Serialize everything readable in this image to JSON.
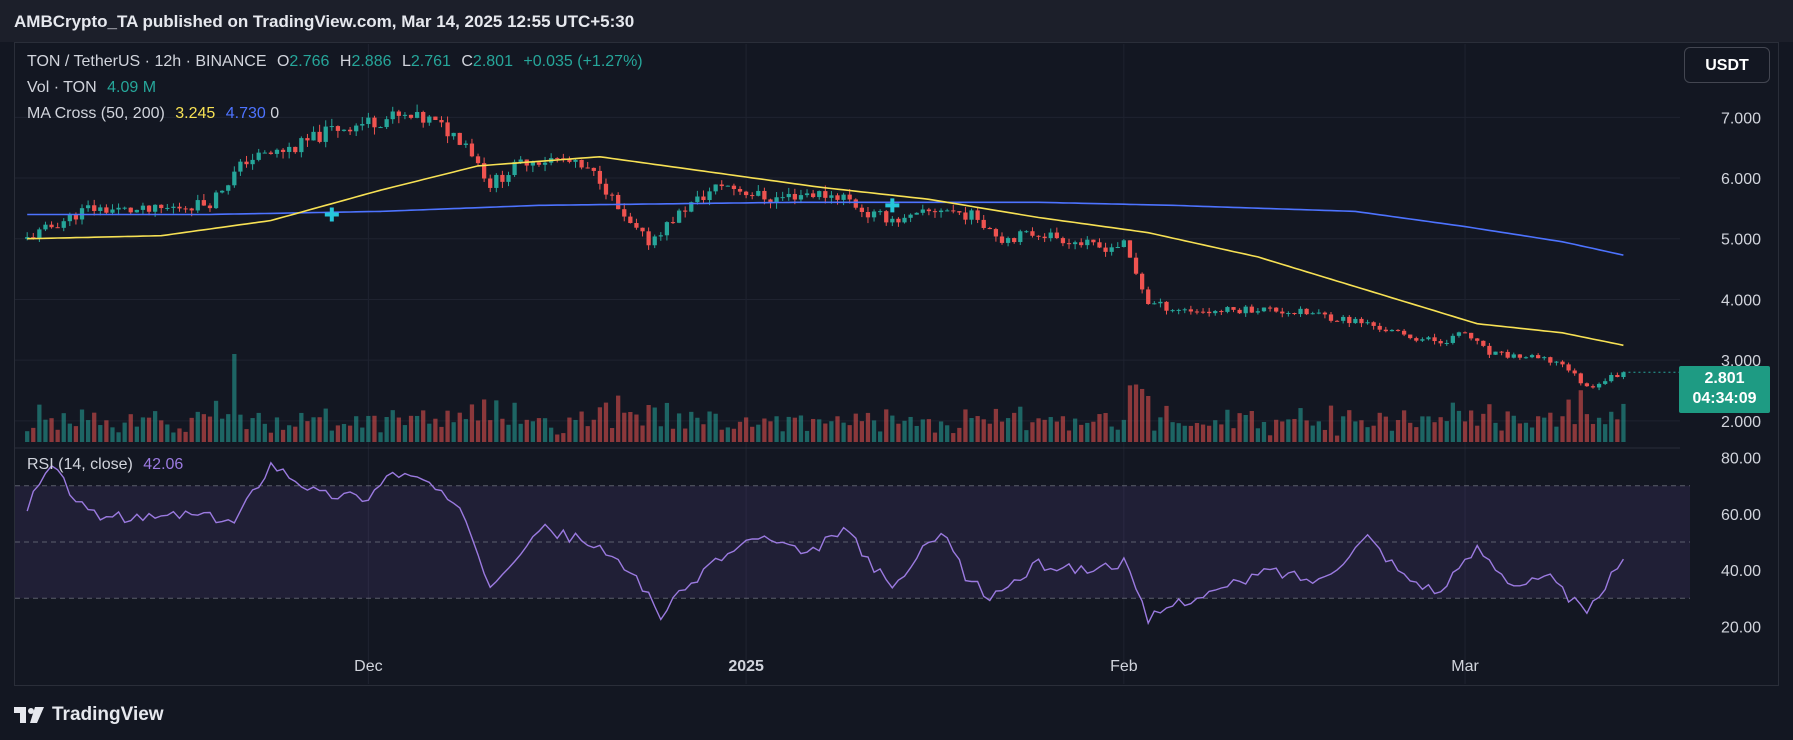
{
  "header": {
    "publish_line": "AMBCrypto_TA published on TradingView.com, Mar 14, 2025 12:55 UTC+5:30"
  },
  "legend": {
    "symbol": "TON / TetherUS · 12h · BINANCE",
    "o_label": "O",
    "o_value": "2.766",
    "h_label": "H",
    "h_value": "2.886",
    "l_label": "L",
    "l_value": "2.761",
    "c_label": "C",
    "c_value": "2.801",
    "change": "+0.035 (+1.27%)",
    "vol_label": "Vol · TON",
    "vol_value": "4.09 M",
    "ma_label": "MA Cross (50, 200)",
    "ma_fast_value": "3.245",
    "ma_slow_value": "4.730",
    "ma_extra": "0"
  },
  "rsi_legend": {
    "label": "RSI (14, close)",
    "value": "42.06"
  },
  "currency_button": "USDT",
  "price_tag": {
    "price": "2.801",
    "countdown": "04:34:09"
  },
  "footer": {
    "brand": "TradingView"
  },
  "colors": {
    "background": "#131722",
    "up": "#26a69a",
    "down": "#ef5350",
    "ma_fast": "#f7e154",
    "ma_slow": "#4d73ff",
    "rsi_line": "#9b7ae0",
    "cross_marker": "#26c6da",
    "price_tag": "#1e9b83"
  },
  "chart_data": {
    "type": "candlestick",
    "x_tick_labels": [
      "Dec",
      "2025",
      "Feb",
      "Mar"
    ],
    "price_axis_ticks": [
      "7.000",
      "6.000",
      "5.000",
      "4.000",
      "3.000",
      "2.000"
    ],
    "price_range": [
      1.8,
      7.45
    ],
    "price_anchors": [
      [
        "Nov 3",
        5.0
      ],
      [
        "Nov 8",
        5.5
      ],
      [
        "Nov 13",
        5.45
      ],
      [
        "Nov 18",
        5.6
      ],
      [
        "Nov 21",
        6.3
      ],
      [
        "Nov 25",
        6.5
      ],
      [
        "Nov 28",
        6.8
      ],
      [
        "Dec 3",
        7.0
      ],
      [
        "Dec 6",
        6.95
      ],
      [
        "Dec 9",
        6.6
      ],
      [
        "Dec 11",
        5.9
      ],
      [
        "Dec 14",
        6.3
      ],
      [
        "Dec 17",
        6.3
      ],
      [
        "Dec 20",
        6.0
      ],
      [
        "Dec 22",
        5.3
      ],
      [
        "Dec 24",
        4.95
      ],
      [
        "Dec 27",
        5.5
      ],
      [
        "Dec 30",
        5.9
      ],
      [
        "Jan 3",
        5.65
      ],
      [
        "Jan 6",
        5.75
      ],
      [
        "Jan 9",
        5.7
      ],
      [
        "Jan 11",
        5.4
      ],
      [
        "Jan 14",
        5.3
      ],
      [
        "Jan 17",
        5.5
      ],
      [
        "Jan 20",
        5.35
      ],
      [
        "Jan 22",
        5.0
      ],
      [
        "Jan 25",
        5.1
      ],
      [
        "Jan 28",
        4.95
      ],
      [
        "Jan 30",
        4.85
      ],
      [
        "Feb 1",
        4.9
      ],
      [
        "Feb 3",
        3.95
      ],
      [
        "Feb 5",
        3.85
      ],
      [
        "Feb 8",
        3.8
      ],
      [
        "Feb 12",
        3.85
      ],
      [
        "Feb 17",
        3.75
      ],
      [
        "Feb 21",
        3.6
      ],
      [
        "Feb 24",
        3.4
      ],
      [
        "Feb 27",
        3.3
      ],
      [
        "Mar 1",
        3.45
      ],
      [
        "Mar 3",
        3.1
      ],
      [
        "Mar 6",
        3.05
      ],
      [
        "Mar 9",
        2.95
      ],
      [
        "Mar 11",
        2.55
      ],
      [
        "Mar 13",
        2.72
      ],
      [
        "Mar 14",
        2.8
      ]
    ],
    "ma_fast_anchors": [
      [
        "Nov 3",
        5.0
      ],
      [
        "Nov 14",
        5.05
      ],
      [
        "Nov 23",
        5.3
      ],
      [
        "Dec 2",
        5.8
      ],
      [
        "Dec 10",
        6.2
      ],
      [
        "Dec 20",
        6.35
      ],
      [
        "Dec 29",
        6.1
      ],
      [
        "Jan 7",
        5.85
      ],
      [
        "Jan 16",
        5.65
      ],
      [
        "Jan 25",
        5.35
      ],
      [
        "Feb 3",
        5.1
      ],
      [
        "Feb 12",
        4.7
      ],
      [
        "Feb 21",
        4.15
      ],
      [
        "Mar 2",
        3.6
      ],
      [
        "Mar 9",
        3.45
      ],
      [
        "Mar 14",
        3.245
      ]
    ],
    "ma_slow_anchors": [
      [
        "Nov 3",
        5.4
      ],
      [
        "Nov 18",
        5.4
      ],
      [
        "Dec 2",
        5.45
      ],
      [
        "Dec 15",
        5.55
      ],
      [
        "Jan 5",
        5.6
      ],
      [
        "Jan 25",
        5.6
      ],
      [
        "Feb 5",
        5.55
      ],
      [
        "Feb 20",
        5.45
      ],
      [
        "Mar 1",
        5.2
      ],
      [
        "Mar 9",
        4.95
      ],
      [
        "Mar 14",
        4.73
      ]
    ],
    "cross_markers": [
      [
        "Nov 28",
        5.4
      ],
      [
        "Jan 13",
        5.55
      ]
    ],
    "rsi": {
      "axis_ticks": [
        "80.00",
        "60.00",
        "40.00",
        "20.00"
      ],
      "range": [
        18,
        82
      ],
      "levels": {
        "upper": 70,
        "middle": 50,
        "lower": 30
      },
      "anchors": [
        [
          "Nov 3",
          63
        ],
        [
          "Nov 5",
          77
        ],
        [
          "Nov 8",
          60
        ],
        [
          "Nov 12",
          58
        ],
        [
          "Nov 16",
          60
        ],
        [
          "Nov 20",
          57
        ],
        [
          "Nov 23",
          78
        ],
        [
          "Nov 27",
          67
        ],
        [
          "Dec 1",
          66
        ],
        [
          "Dec 3",
          75
        ],
        [
          "Dec 6",
          71
        ],
        [
          "Dec 9",
          58
        ],
        [
          "Dec 11",
          35
        ],
        [
          "Dec 15",
          55
        ],
        [
          "Dec 19",
          50
        ],
        [
          "Dec 23",
          38
        ],
        [
          "Dec 25",
          24
        ],
        [
          "Dec 29",
          42
        ],
        [
          "Jan 2",
          52
        ],
        [
          "Jan 6",
          45
        ],
        [
          "Jan 9",
          55
        ],
        [
          "Jan 13",
          33
        ],
        [
          "Jan 17",
          55
        ],
        [
          "Jan 19",
          38
        ],
        [
          "Jan 21",
          30
        ],
        [
          "Jan 25",
          42
        ],
        [
          "Jan 29",
          40
        ],
        [
          "Feb 1",
          43
        ],
        [
          "Feb 3",
          22
        ],
        [
          "Feb 5",
          28
        ],
        [
          "Feb 9",
          33
        ],
        [
          "Feb 13",
          40
        ],
        [
          "Feb 17",
          36
        ],
        [
          "Feb 21",
          52
        ],
        [
          "Feb 24",
          38
        ],
        [
          "Feb 27",
          32
        ],
        [
          "Mar 2",
          48
        ],
        [
          "Mar 5",
          35
        ],
        [
          "Mar 8",
          37
        ],
        [
          "Mar 11",
          24
        ],
        [
          "Mar 13",
          38
        ],
        [
          "Mar 14",
          42.06
        ]
      ]
    }
  }
}
